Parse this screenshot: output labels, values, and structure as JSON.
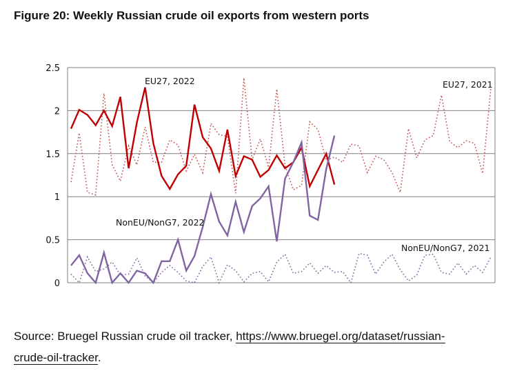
{
  "title": "Figure 20: Weekly Russian crude oil exports from western ports",
  "source": {
    "prefix": "Source: Bruegel Russian crude oil tracker, ",
    "link1": "https://www.bruegel.org/dataset/russian-",
    "link2": "crude-oil-tracker",
    "suffix": "."
  },
  "chart_data": {
    "type": "line",
    "title": "Figure 20: Weekly Russian crude oil exports from western ports",
    "xlabel": "",
    "ylabel": "",
    "ylim": [
      0,
      2.5
    ],
    "yticks": [
      "0",
      "0.5",
      "1",
      "1.5",
      "2",
      "2.5"
    ],
    "grid": true,
    "weeks": 52,
    "series": [
      {
        "name": "EU27, 2022",
        "color": "#c00000",
        "style": "solid",
        "values": [
          1.79,
          2.01,
          1.95,
          1.83,
          2.0,
          1.82,
          2.16,
          1.33,
          1.86,
          2.27,
          1.62,
          1.24,
          1.09,
          1.26,
          1.36,
          2.07,
          1.69,
          1.56,
          1.3,
          1.78,
          1.24,
          1.47,
          1.43,
          1.23,
          1.31,
          1.48,
          1.33,
          1.4,
          1.57,
          1.12,
          1.31,
          1.5,
          1.14
        ]
      },
      {
        "name": "NonEU/NonG7, 2022",
        "color": "#8064a2",
        "style": "solid",
        "values": [
          0.2,
          0.32,
          0.11,
          0.0,
          0.35,
          0.0,
          0.11,
          0.0,
          0.14,
          0.11,
          0.0,
          0.25,
          0.25,
          0.5,
          0.14,
          0.31,
          0.65,
          1.03,
          0.71,
          0.55,
          0.94,
          0.59,
          0.89,
          0.98,
          1.12,
          0.48,
          1.21,
          1.4,
          1.63,
          0.78,
          0.73,
          1.32,
          1.71
        ]
      },
      {
        "name": "EU27, 2021",
        "color": "#c0504d",
        "style": "dotted",
        "values": [
          1.17,
          1.74,
          1.05,
          1.02,
          2.2,
          1.37,
          1.18,
          1.59,
          1.37,
          1.81,
          1.4,
          1.4,
          1.66,
          1.6,
          1.3,
          1.49,
          1.28,
          1.85,
          1.72,
          1.7,
          1.04,
          2.38,
          1.43,
          1.67,
          1.34,
          2.25,
          1.36,
          1.08,
          1.13,
          1.87,
          1.78,
          1.42,
          1.46,
          1.4,
          1.61,
          1.59,
          1.28,
          1.47,
          1.43,
          1.28,
          1.05,
          1.79,
          1.45,
          1.66,
          1.71,
          2.18,
          1.64,
          1.57,
          1.65,
          1.62,
          1.27,
          2.26
        ]
      },
      {
        "name": "NonEU/NonG7, 2021",
        "color": "#8064a2",
        "style": "dotted",
        "values": [
          0.1,
          0.0,
          0.3,
          0.13,
          0.16,
          0.24,
          0.09,
          0.1,
          0.29,
          0.08,
          0.0,
          0.12,
          0.2,
          0.12,
          0.02,
          0.0,
          0.19,
          0.3,
          0.0,
          0.21,
          0.14,
          0.01,
          0.11,
          0.13,
          0.01,
          0.24,
          0.33,
          0.11,
          0.13,
          0.23,
          0.11,
          0.2,
          0.12,
          0.13,
          0.0,
          0.34,
          0.32,
          0.1,
          0.24,
          0.33,
          0.15,
          0.02,
          0.09,
          0.32,
          0.33,
          0.12,
          0.1,
          0.23,
          0.1,
          0.2,
          0.12,
          0.3
        ]
      }
    ],
    "annotations": [
      "EU27, 2022",
      "NonEU/NonG7, 2022",
      "EU27, 2021",
      "NonEU/NonG7, 2021"
    ]
  }
}
